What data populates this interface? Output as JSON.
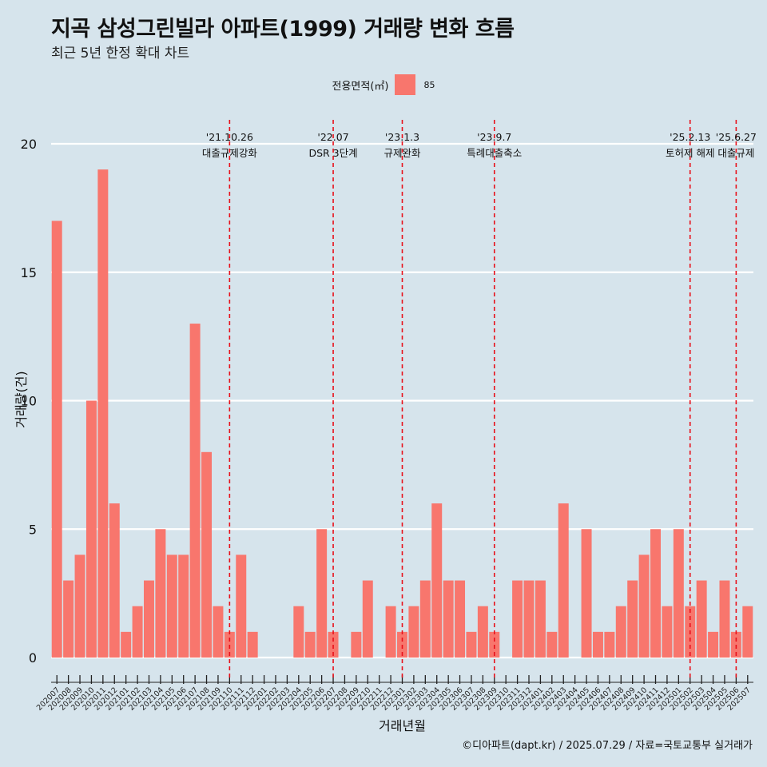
{
  "title": "지곡 삼성그린빌라 아파트(1999) 거래량 변화 흐름",
  "subtitle": "최근 5년 한정 확대 차트",
  "caption": "©디아파트(dapt.kr) / 2025.07.29 / 자료=국토교통부 실거래가",
  "legend": {
    "title": "전용면적(㎡)",
    "items": [
      {
        "label": "85",
        "color": "#f8766d"
      }
    ]
  },
  "chart_data": {
    "type": "bar",
    "title": "지곡 삼성그린빌라 아파트(1999) 거래량 변화 흐름",
    "subtitle": "최근 5년 한정 확대 차트",
    "xlabel": "거래년월",
    "ylabel": "거래량(건)",
    "ylim": [
      0,
      21
    ],
    "yticks": [
      0,
      5,
      10,
      15,
      20
    ],
    "grid": true,
    "legend_position": "top",
    "categories": [
      "202007",
      "202008",
      "202009",
      "202010",
      "202011",
      "202012",
      "202101",
      "202102",
      "202103",
      "202104",
      "202105",
      "202106",
      "202107",
      "202108",
      "202109",
      "202110",
      "202111",
      "202112",
      "202201",
      "202202",
      "202203",
      "202204",
      "202205",
      "202206",
      "202207",
      "202208",
      "202209",
      "202210",
      "202211",
      "202212",
      "202301",
      "202302",
      "202303",
      "202304",
      "202305",
      "202306",
      "202307",
      "202308",
      "202309",
      "202310",
      "202311",
      "202312",
      "202401",
      "202402",
      "202403",
      "202404",
      "202405",
      "202406",
      "202407",
      "202408",
      "202409",
      "202410",
      "202411",
      "202412",
      "202501",
      "202502",
      "202503",
      "202504",
      "202505",
      "202506",
      "202507"
    ],
    "series": [
      {
        "name": "85",
        "color": "#f8766d",
        "values": [
          17,
          3,
          4,
          10,
          19,
          6,
          1,
          2,
          3,
          5,
          4,
          4,
          13,
          8,
          2,
          1,
          4,
          1,
          0,
          0,
          0,
          2,
          1,
          5,
          1,
          0,
          1,
          3,
          0,
          2,
          1,
          2,
          3,
          6,
          3,
          3,
          1,
          2,
          1,
          0,
          3,
          3,
          3,
          1,
          6,
          0,
          5,
          1,
          1,
          2,
          3,
          4,
          5,
          2,
          5,
          2,
          3,
          1,
          3,
          1,
          2
        ]
      }
    ],
    "events": [
      {
        "date": "'21.10.26",
        "label": "대출규제강화",
        "category": "202110"
      },
      {
        "date": "'22.07",
        "label": "DSR 3단계",
        "category": "202207"
      },
      {
        "date": "'23.1.3",
        "label": "규제완화",
        "category": "202301"
      },
      {
        "date": "'23.9.7",
        "label": "특례대출축소",
        "category": "202309"
      },
      {
        "date": "'25.2.13",
        "label": "토허제 해제",
        "category": "202502"
      },
      {
        "date": "'25.6.27",
        "label": "대출규제",
        "category": "202506"
      }
    ]
  }
}
